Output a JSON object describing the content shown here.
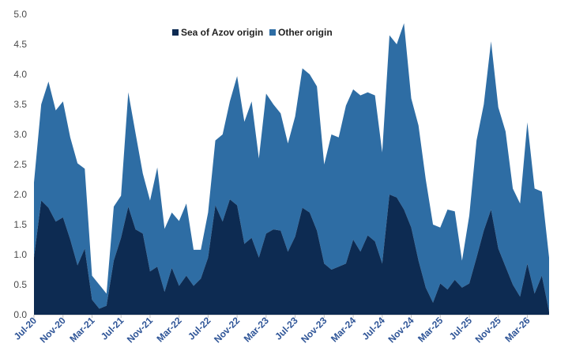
{
  "chart_data": {
    "type": "area",
    "stacked": true,
    "ylim": [
      0,
      5
    ],
    "yticks": [
      "0.0",
      "0.5",
      "1.0",
      "1.5",
      "2.0",
      "2.5",
      "3.0",
      "3.5",
      "4.0",
      "4.5",
      "5.0"
    ],
    "x_labels": [
      "Jul-20",
      "Nov-20",
      "Mar-21",
      "Jul-21",
      "Nov-21",
      "Mar-22",
      "Jul-22",
      "Nov-22",
      "Mar-23",
      "Jul-23",
      "Nov-23",
      "Mar-24",
      "Jul-24",
      "Nov-24",
      "Mar-25",
      "Jul-25",
      "Nov-25",
      "Mar-26"
    ],
    "months": [
      "Jul-20",
      "Aug-20",
      "Sep-20",
      "Oct-20",
      "Nov-20",
      "Dec-20",
      "Jan-21",
      "Feb-21",
      "Mar-21",
      "Apr-21",
      "May-21",
      "Jun-21",
      "Jul-21",
      "Aug-21",
      "Sep-21",
      "Oct-21",
      "Nov-21",
      "Dec-21",
      "Jan-22",
      "Feb-22",
      "Mar-22",
      "Apr-22",
      "May-22",
      "Jun-22",
      "Jul-22",
      "Aug-22",
      "Sep-22",
      "Oct-22",
      "Nov-22",
      "Dec-22",
      "Jan-23",
      "Feb-23",
      "Mar-23",
      "Apr-23",
      "May-23",
      "Jun-23",
      "Jul-23",
      "Aug-23",
      "Sep-23",
      "Oct-23",
      "Nov-23",
      "Dec-23",
      "Jan-24",
      "Feb-24",
      "Mar-24",
      "Apr-24",
      "May-24",
      "Jun-24",
      "Jul-24",
      "Aug-24",
      "Sep-24",
      "Oct-24",
      "Nov-24",
      "Dec-24",
      "Jan-25",
      "Feb-25",
      "Mar-25",
      "Apr-25",
      "May-25",
      "Jun-25",
      "Jul-25",
      "Aug-25",
      "Sep-25",
      "Oct-25",
      "Nov-25",
      "Dec-25",
      "Jan-26",
      "Feb-26",
      "Mar-26",
      "Apr-26",
      "May-26",
      "Jun-26"
    ],
    "legend_position": "top-center",
    "grid": false,
    "series": [
      {
        "name": "Sea of Azov origin",
        "color": "#0d2b52",
        "values": [
          0.95,
          1.9,
          1.78,
          1.55,
          1.62,
          1.25,
          0.82,
          1.1,
          0.25,
          0.1,
          0.15,
          0.9,
          1.28,
          1.8,
          1.42,
          1.35,
          0.72,
          0.8,
          0.38,
          0.78,
          0.48,
          0.65,
          0.48,
          0.6,
          0.95,
          1.82,
          1.55,
          1.92,
          1.82,
          1.18,
          1.28,
          0.95,
          1.35,
          1.42,
          1.4,
          1.05,
          1.3,
          1.78,
          1.7,
          1.4,
          0.85,
          0.75,
          0.8,
          0.85,
          1.25,
          1.05,
          1.32,
          1.22,
          0.85,
          2.0,
          1.95,
          1.75,
          1.45,
          0.9,
          0.45,
          0.2,
          0.52,
          0.42,
          0.58,
          0.45,
          0.52,
          0.95,
          1.4,
          1.75,
          1.1,
          0.8,
          0.5,
          0.3,
          0.85,
          0.35,
          0.65,
          0.05
        ]
      },
      {
        "name": "Other origin",
        "color": "#2e6da4",
        "values": [
          1.25,
          1.6,
          2.1,
          1.85,
          1.93,
          1.7,
          1.7,
          1.33,
          0.4,
          0.4,
          0.2,
          0.9,
          0.7,
          1.9,
          1.6,
          1.0,
          1.18,
          1.65,
          1.05,
          0.92,
          1.08,
          1.2,
          0.6,
          0.48,
          0.75,
          1.08,
          1.45,
          1.63,
          2.15,
          2.03,
          2.27,
          1.65,
          2.33,
          2.08,
          1.95,
          1.8,
          2.0,
          2.32,
          2.3,
          2.4,
          1.65,
          2.25,
          2.15,
          2.63,
          2.5,
          2.6,
          2.38,
          2.43,
          1.85,
          2.65,
          2.55,
          3.1,
          2.15,
          2.25,
          1.8,
          1.3,
          0.93,
          1.33,
          1.14,
          0.45,
          1.13,
          1.95,
          2.1,
          2.8,
          2.35,
          2.25,
          1.6,
          1.55,
          2.35,
          1.75,
          1.4,
          0.9
        ]
      }
    ]
  }
}
